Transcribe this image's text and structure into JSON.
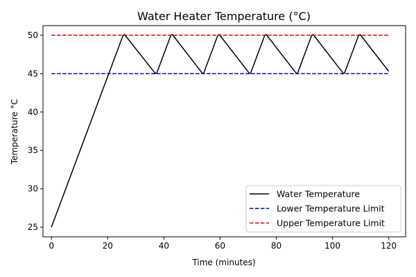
{
  "chart_data": {
    "type": "line",
    "title": "Water Heater Temperature (°C)",
    "xlabel": "Time (minutes)",
    "ylabel": "Temperature °C",
    "xlim": [
      -3,
      126
    ],
    "ylim": [
      23.75,
      51.25
    ],
    "xticks": [
      0,
      20,
      40,
      60,
      80,
      100,
      120
    ],
    "yticks": [
      25,
      30,
      35,
      40,
      45,
      50
    ],
    "grid": false,
    "legend_position": "bottom-right",
    "series": [
      {
        "name": "Water Temperature",
        "color": "#000000",
        "dash": "solid",
        "x": [
          0,
          0.5,
          25.5,
          26,
          37,
          37.5,
          42.5,
          43,
          53.8,
          54.2,
          59.2,
          59.7,
          70.5,
          70.9,
          75.9,
          76.4,
          87.2,
          87.6,
          92.6,
          93.1,
          103.9,
          104.3,
          109.3,
          109.8,
          120
        ],
        "y": [
          25,
          25.5,
          50,
          50.1,
          45,
          45.1,
          50,
          50.1,
          45,
          45.1,
          50,
          50.1,
          45,
          45.1,
          50,
          50.1,
          45,
          45.1,
          50,
          50.1,
          45,
          45.1,
          50,
          50.1,
          45.3
        ]
      },
      {
        "name": "Lower Temperature Limit",
        "color": "#0000cc",
        "dash": "dashed",
        "x": [
          0,
          120
        ],
        "y": [
          45,
          45
        ]
      },
      {
        "name": "Upper Temperature Limit",
        "color": "#dd0000",
        "dash": "dashed",
        "x": [
          0,
          120
        ],
        "y": [
          50,
          50
        ]
      }
    ]
  }
}
